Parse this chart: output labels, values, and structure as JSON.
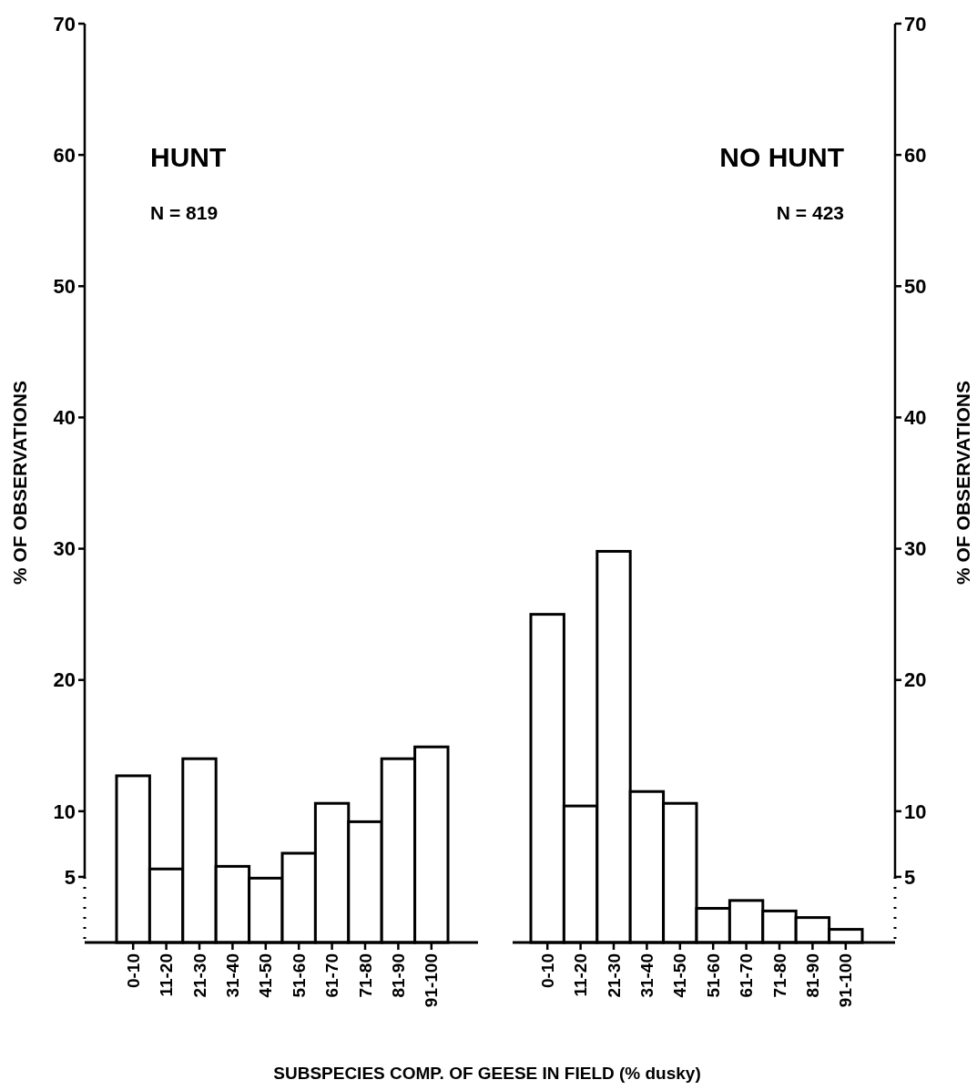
{
  "chart_data": [
    {
      "type": "bar",
      "title": "HUNT",
      "subtitle": "N = 819",
      "xlabel": "SUBSPECIES COMP. OF GEESE IN FIELD (% dusky)",
      "ylabel": "% OF OBSERVATIONS",
      "categories": [
        "0-10",
        "11-20",
        "21-30",
        "31-40",
        "41-50",
        "51-60",
        "61-70",
        "71-80",
        "81-90",
        "91-100"
      ],
      "values": [
        12.7,
        5.6,
        14.0,
        5.8,
        4.9,
        6.8,
        10.6,
        9.2,
        14.0,
        14.9
      ],
      "color": "#ffffff",
      "ylim": [
        0,
        70
      ],
      "yticks": [
        5,
        10,
        20,
        30,
        40,
        50,
        60,
        70
      ],
      "grid": false
    },
    {
      "type": "bar",
      "title": "NO HUNT",
      "subtitle": "N = 423",
      "ylabel": "% OF OBSERVATIONS",
      "categories": [
        "0-10",
        "11-20",
        "21-30",
        "31-40",
        "41-50",
        "51-60",
        "61-70",
        "71-80",
        "81-90",
        "91-100"
      ],
      "values": [
        25.0,
        10.4,
        29.8,
        11.5,
        10.6,
        2.6,
        3.2,
        2.4,
        1.9,
        1.0
      ],
      "color": "#ffffff",
      "ylim": [
        0,
        70
      ],
      "yticks": [
        5,
        10,
        20,
        30,
        40,
        50,
        60,
        70
      ],
      "grid": false
    }
  ]
}
